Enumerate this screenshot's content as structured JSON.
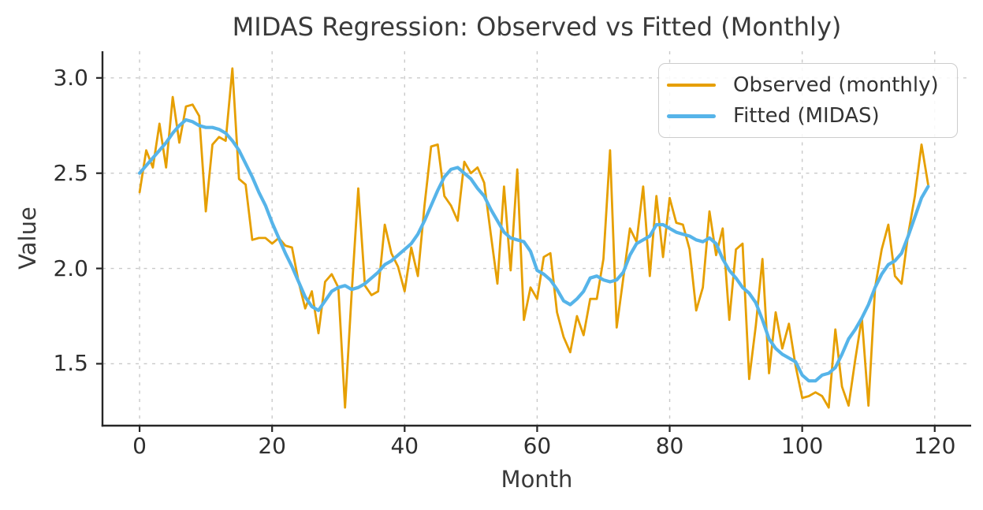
{
  "figure": {
    "background": "#ffffff"
  },
  "chart_data": {
    "type": "line",
    "title": "MIDAS Regression: Observed vs Fitted (Monthly)",
    "xlabel": "Month",
    "ylabel": "Value",
    "xlim": [
      -5.6,
      125.5
    ],
    "ylim": [
      1.175,
      3.14
    ],
    "xticks": [
      0,
      20,
      40,
      60,
      80,
      100,
      120
    ],
    "yticks": [
      1.5,
      2.0,
      2.5,
      3.0
    ],
    "xtick_labels": [
      "0",
      "20",
      "40",
      "60",
      "80",
      "100",
      "120"
    ],
    "ytick_labels": [
      "1.5",
      "2.0",
      "2.5",
      "3.0"
    ],
    "grid": {
      "visible": true,
      "style": "dashed",
      "color": "#c9c9c9"
    },
    "axis_color": "#262626",
    "legend_loc": "upper right",
    "x": [
      0,
      1,
      2,
      3,
      4,
      5,
      6,
      7,
      8,
      9,
      10,
      11,
      12,
      13,
      14,
      15,
      16,
      17,
      18,
      19,
      20,
      21,
      22,
      23,
      24,
      25,
      26,
      27,
      28,
      29,
      30,
      31,
      32,
      33,
      34,
      35,
      36,
      37,
      38,
      39,
      40,
      41,
      42,
      43,
      44,
      45,
      46,
      47,
      48,
      49,
      50,
      51,
      52,
      53,
      54,
      55,
      56,
      57,
      58,
      59,
      60,
      61,
      62,
      63,
      64,
      65,
      66,
      67,
      68,
      69,
      70,
      71,
      72,
      73,
      74,
      75,
      76,
      77,
      78,
      79,
      80,
      81,
      82,
      83,
      84,
      85,
      86,
      87,
      88,
      89,
      90,
      91,
      92,
      93,
      94,
      95,
      96,
      97,
      98,
      99,
      100,
      101,
      102,
      103,
      104,
      105,
      106,
      107,
      108,
      109,
      110,
      111,
      112,
      113,
      114,
      115,
      116,
      117,
      118,
      119
    ],
    "series": [
      {
        "name": "Observed (monthly)",
        "color": "#E69F00",
        "width": 2.8,
        "values": [
          2.4,
          2.62,
          2.53,
          2.76,
          2.53,
          2.9,
          2.66,
          2.85,
          2.86,
          2.8,
          2.3,
          2.65,
          2.69,
          2.67,
          3.05,
          2.47,
          2.44,
          2.15,
          2.16,
          2.16,
          2.13,
          2.16,
          2.12,
          2.11,
          1.93,
          1.79,
          1.88,
          1.66,
          1.93,
          1.97,
          1.9,
          1.27,
          1.87,
          2.42,
          1.91,
          1.86,
          1.88,
          2.23,
          2.08,
          2.01,
          1.88,
          2.11,
          1.96,
          2.33,
          2.64,
          2.65,
          2.38,
          2.33,
          2.25,
          2.56,
          2.5,
          2.53,
          2.45,
          2.18,
          1.92,
          2.43,
          1.99,
          2.52,
          1.73,
          1.9,
          1.84,
          2.06,
          2.08,
          1.77,
          1.64,
          1.56,
          1.75,
          1.65,
          1.84,
          1.84,
          2.05,
          2.62,
          1.69,
          1.95,
          2.21,
          2.14,
          2.43,
          1.96,
          2.38,
          2.06,
          2.37,
          2.24,
          2.23,
          2.1,
          1.78,
          1.9,
          2.3,
          2.07,
          2.21,
          1.73,
          2.1,
          2.13,
          1.42,
          1.7,
          2.05,
          1.45,
          1.77,
          1.58,
          1.71,
          1.49,
          1.32,
          1.33,
          1.35,
          1.33,
          1.27,
          1.68,
          1.38,
          1.28,
          1.52,
          1.74,
          1.28,
          1.9,
          2.1,
          2.23,
          1.96,
          1.92,
          2.18,
          2.38,
          2.65,
          2.44
        ]
      },
      {
        "name": "Fitted (MIDAS)",
        "color": "#56B4E9",
        "width": 4.2,
        "values": [
          2.5,
          2.54,
          2.58,
          2.62,
          2.66,
          2.71,
          2.75,
          2.78,
          2.77,
          2.75,
          2.74,
          2.74,
          2.73,
          2.71,
          2.67,
          2.62,
          2.55,
          2.48,
          2.4,
          2.33,
          2.24,
          2.16,
          2.08,
          2.01,
          1.93,
          1.85,
          1.8,
          1.78,
          1.83,
          1.88,
          1.9,
          1.91,
          1.89,
          1.9,
          1.92,
          1.95,
          1.98,
          2.02,
          2.04,
          2.07,
          2.1,
          2.13,
          2.18,
          2.25,
          2.33,
          2.41,
          2.48,
          2.52,
          2.53,
          2.5,
          2.47,
          2.42,
          2.38,
          2.31,
          2.25,
          2.19,
          2.16,
          2.15,
          2.14,
          2.09,
          1.99,
          1.97,
          1.94,
          1.89,
          1.83,
          1.81,
          1.84,
          1.88,
          1.95,
          1.96,
          1.94,
          1.93,
          1.94,
          1.98,
          2.07,
          2.13,
          2.15,
          2.17,
          2.23,
          2.23,
          2.21,
          2.19,
          2.18,
          2.17,
          2.15,
          2.14,
          2.16,
          2.13,
          2.05,
          1.99,
          1.95,
          1.9,
          1.87,
          1.82,
          1.73,
          1.63,
          1.58,
          1.55,
          1.53,
          1.51,
          1.44,
          1.41,
          1.41,
          1.44,
          1.45,
          1.48,
          1.55,
          1.63,
          1.68,
          1.74,
          1.81,
          1.9,
          1.97,
          2.02,
          2.04,
          2.08,
          2.17,
          2.27,
          2.37,
          2.43
        ]
      }
    ]
  }
}
